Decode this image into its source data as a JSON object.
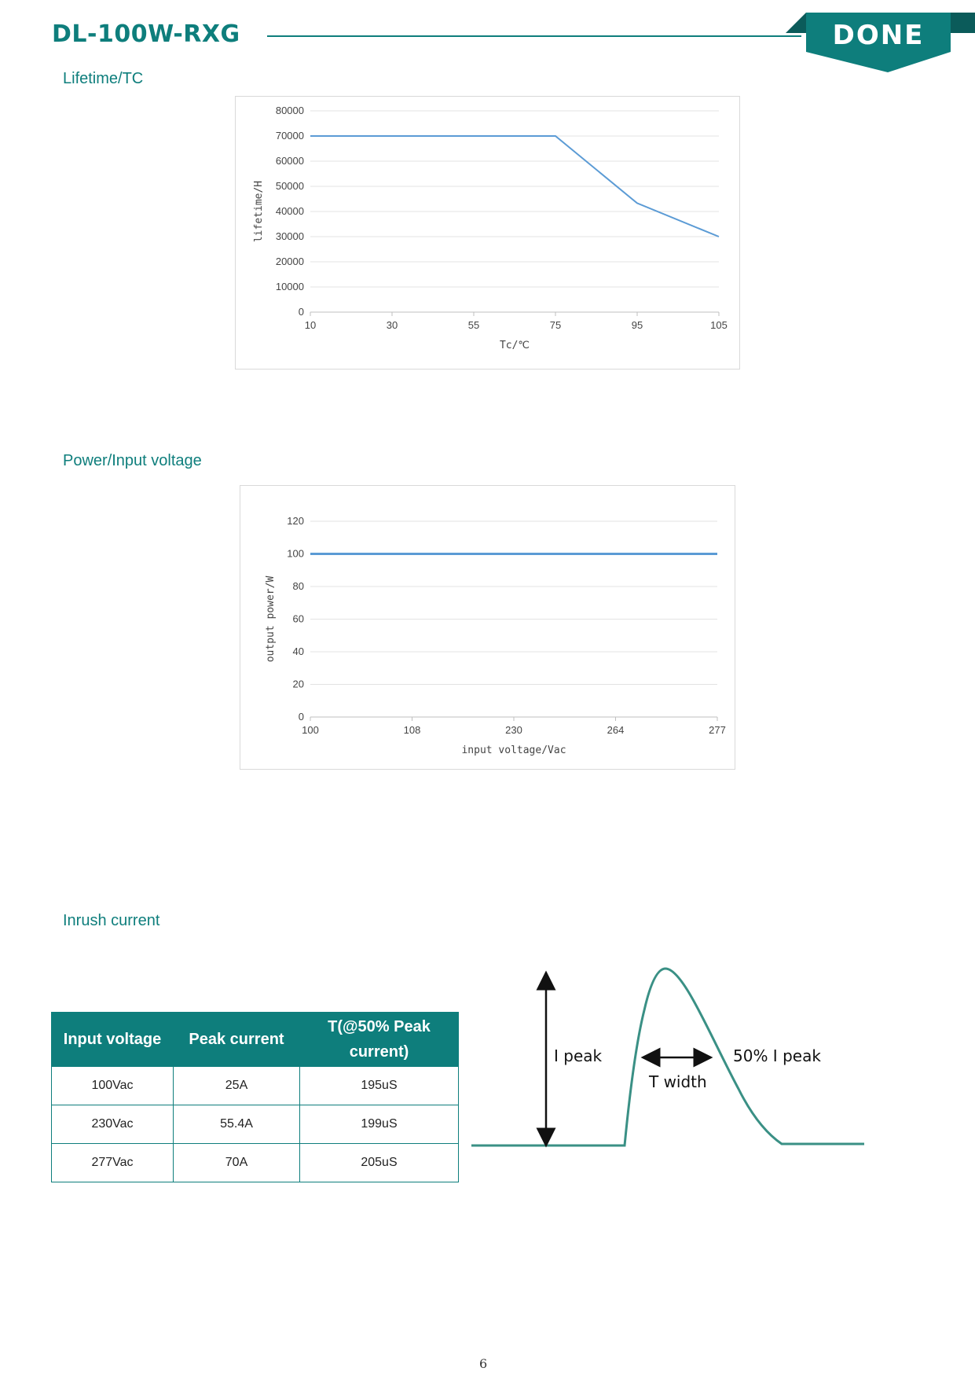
{
  "header": {
    "product_title": "DL-100W-RXG",
    "logo_text": "DONE",
    "brand_color": "#0e7e7c",
    "logo_shade_color": "#0b5b5a"
  },
  "sections": {
    "lifetime_title": "Lifetime/TC",
    "power_title": "Power/Input voltage",
    "inrush_title": "Inrush current"
  },
  "chart_data": [
    {
      "type": "line",
      "x": [
        "10",
        "30",
        "55",
        "75",
        "95",
        "105"
      ],
      "series": [
        {
          "values": [
            70000,
            70000,
            70000,
            70000,
            43300,
            30000
          ]
        }
      ],
      "xlabel": "Tc/℃",
      "ylabel": "lifetime/H",
      "ylim": [
        0,
        80000
      ],
      "yticks": [
        "0",
        "10000",
        "20000",
        "30000",
        "40000",
        "50000",
        "60000",
        "70000",
        "80000"
      ],
      "grid": true,
      "line_color": "#5b9bd5"
    },
    {
      "type": "line",
      "x": [
        "100",
        "108",
        "230",
        "264",
        "277"
      ],
      "series": [
        {
          "values": [
            100,
            100,
            100,
            100,
            100
          ]
        }
      ],
      "xlabel": "input voltage/Vac",
      "ylabel": "output power/W",
      "ylim": [
        0,
        120
      ],
      "yticks": [
        "0",
        "20",
        "40",
        "60",
        "80",
        "100",
        "120"
      ],
      "grid": true,
      "line_color": "#5b9bd5"
    }
  ],
  "inrush": {
    "headers": [
      "Input voltage",
      "Peak current",
      "T(@50% Peak current)"
    ],
    "rows": [
      [
        "100Vac",
        "25A",
        "195uS"
      ],
      [
        "230Vac",
        "55.4A",
        "199uS"
      ],
      [
        "277Vac",
        "70A",
        "205uS"
      ]
    ],
    "waveform": {
      "i_peak_label": "I peak",
      "t_width_label": "T width",
      "half_peak_label": "50% I peak",
      "wave_color": "#3a9085"
    }
  },
  "footer": {
    "page_number": "6"
  }
}
